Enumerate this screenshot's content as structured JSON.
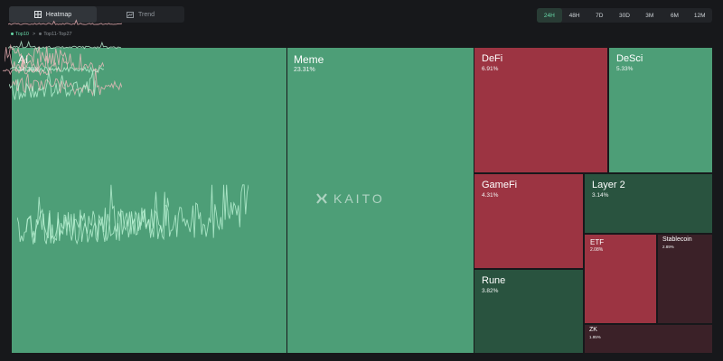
{
  "view_toggle": {
    "heatmap_label": "Heatmap",
    "trend_label": "Trend",
    "heatmap_icon": "grid-icon",
    "trend_icon": "trend-chart-icon"
  },
  "timeframes": {
    "options": [
      "24H",
      "48H",
      "7D",
      "30D",
      "3M",
      "6M",
      "12M"
    ],
    "selected": "24H"
  },
  "breadcrumb": {
    "current": "Top10",
    "separator": ">",
    "next": "Top11-Top27"
  },
  "watermark": "KAITO",
  "colors": {
    "green": "#4d9e77",
    "red": "#9c3442",
    "dark_green": "#29533f",
    "dark_red": "#3b2128",
    "accent": "#67d7a7"
  },
  "heatmap": [
    {
      "name": "AI",
      "pct": "34.38%",
      "trend": "up"
    },
    {
      "name": "Meme",
      "pct": "23.31%",
      "trend": "up"
    },
    {
      "name": "DeFi",
      "pct": "6.91%",
      "trend": "down"
    },
    {
      "name": "DeSci",
      "pct": "5.33%",
      "trend": "up"
    },
    {
      "name": "GameFi",
      "pct": "4.31%",
      "trend": "down"
    },
    {
      "name": "Layer 2",
      "pct": "3.14%",
      "trend": "flat-down"
    },
    {
      "name": "Rune",
      "pct": "3.82%",
      "trend": "flat-up"
    },
    {
      "name": "ETF",
      "pct": "2.08%",
      "trend": "down"
    },
    {
      "name": "Stablecoin",
      "pct": "2.89%",
      "trend": "flat-down"
    },
    {
      "name": "ZK",
      "pct": "1.95%",
      "trend": "flat-down"
    }
  ]
}
